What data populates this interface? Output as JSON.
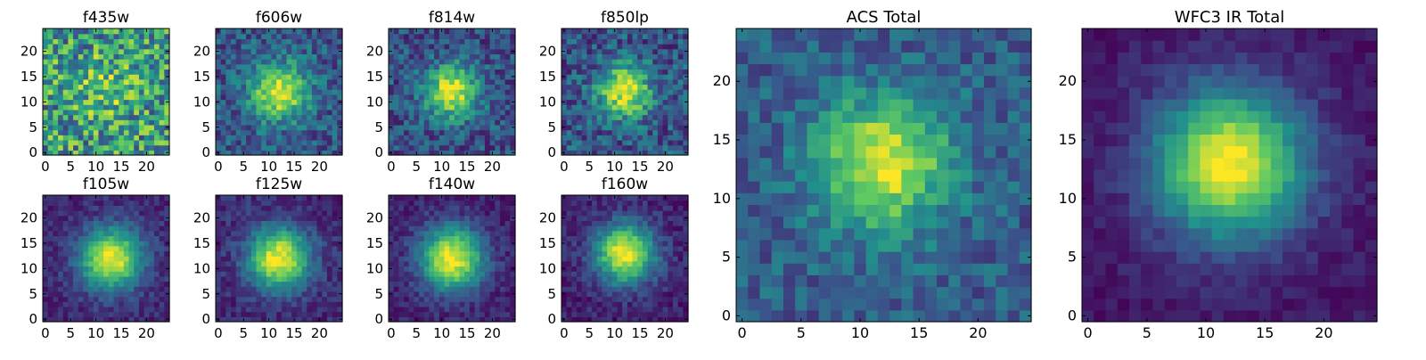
{
  "chart_data": {
    "type": "heatmap",
    "colormap": "viridis",
    "colors": [
      "#440154",
      "#3b528b",
      "#21918c",
      "#5ec962",
      "#fde725"
    ],
    "panels": [
      {
        "id": "f435w",
        "title": "f435w",
        "xticks": [
          0,
          5,
          10,
          15,
          20
        ],
        "yticks": [
          0,
          5,
          10,
          15,
          20
        ],
        "xlim": [
          0,
          24
        ],
        "ylim": [
          0,
          24
        ],
        "peak": [
          12,
          13
        ],
        "sigma": 3.5,
        "noise": 0.34,
        "background": 0.55,
        "amplitude": 0.25
      },
      {
        "id": "f606w",
        "title": "f606w",
        "xticks": [
          0,
          5,
          10,
          15,
          20
        ],
        "yticks": [
          0,
          5,
          10,
          15,
          20
        ],
        "xlim": [
          0,
          24
        ],
        "ylim": [
          0,
          24
        ],
        "peak": [
          12,
          12
        ],
        "sigma": 3.8,
        "noise": 0.18,
        "background": 0.28,
        "amplitude": 0.7
      },
      {
        "id": "f814w",
        "title": "f814w",
        "xticks": [
          0,
          5,
          10,
          15,
          20
        ],
        "yticks": [
          0,
          5,
          10,
          15,
          20
        ],
        "xlim": [
          0,
          24
        ],
        "ylim": [
          0,
          24
        ],
        "peak": [
          12,
          12
        ],
        "sigma": 3.6,
        "noise": 0.18,
        "background": 0.25,
        "amplitude": 0.72
      },
      {
        "id": "f850lp",
        "title": "f850lp",
        "xticks": [
          0,
          5,
          10,
          15,
          20
        ],
        "yticks": [
          0,
          5,
          10,
          15,
          20
        ],
        "xlim": [
          0,
          24
        ],
        "ylim": [
          0,
          24
        ],
        "peak": [
          12,
          12
        ],
        "sigma": 3.6,
        "noise": 0.2,
        "background": 0.27,
        "amplitude": 0.7
      },
      {
        "id": "f105w",
        "title": "f105w",
        "xticks": [
          0,
          5,
          10,
          15,
          20
        ],
        "yticks": [
          0,
          5,
          10,
          15,
          20
        ],
        "xlim": [
          0,
          24
        ],
        "ylim": [
          0,
          24
        ],
        "peak": [
          13,
          12
        ],
        "sigma": 4.2,
        "noise": 0.09,
        "background": 0.12,
        "amplitude": 0.88
      },
      {
        "id": "f125w",
        "title": "f125w",
        "xticks": [
          0,
          5,
          10,
          15,
          20
        ],
        "yticks": [
          0,
          5,
          10,
          15,
          20
        ],
        "xlim": [
          0,
          24
        ],
        "ylim": [
          0,
          24
        ],
        "peak": [
          12,
          12
        ],
        "sigma": 4.2,
        "noise": 0.1,
        "background": 0.12,
        "amplitude": 0.88
      },
      {
        "id": "f140w",
        "title": "f140w",
        "xticks": [
          0,
          5,
          10,
          15,
          20
        ],
        "yticks": [
          0,
          5,
          10,
          15,
          20
        ],
        "xlim": [
          0,
          24
        ],
        "ylim": [
          0,
          24
        ],
        "peak": [
          12,
          12
        ],
        "sigma": 4.3,
        "noise": 0.09,
        "background": 0.1,
        "amplitude": 0.9
      },
      {
        "id": "f160w",
        "title": "f160w",
        "xticks": [
          0,
          5,
          10,
          15,
          20
        ],
        "yticks": [
          0,
          5,
          10,
          15,
          20
        ],
        "xlim": [
          0,
          24
        ],
        "ylim": [
          0,
          24
        ],
        "peak": [
          12,
          13
        ],
        "sigma": 4.1,
        "noise": 0.1,
        "background": 0.1,
        "amplitude": 0.9
      },
      {
        "id": "acs-total",
        "title": "ACS Total",
        "xticks": [
          0,
          5,
          10,
          15,
          20
        ],
        "yticks": [
          0,
          5,
          10,
          15,
          20
        ],
        "xlim": [
          0,
          24
        ],
        "ylim": [
          0,
          24
        ],
        "peak": [
          12,
          13
        ],
        "sigma": 3.8,
        "noise": 0.14,
        "background": 0.3,
        "amplitude": 0.68
      },
      {
        "id": "wfc3-ir-total",
        "title": "WFC3 IR Total",
        "xticks": [
          0,
          5,
          10,
          15,
          20
        ],
        "yticks": [
          0,
          5,
          10,
          15,
          20
        ],
        "xlim": [
          0,
          24
        ],
        "ylim": [
          0,
          24
        ],
        "peak": [
          12,
          13
        ],
        "sigma": 4.4,
        "noise": 0.06,
        "background": 0.07,
        "amplitude": 0.93
      }
    ]
  }
}
